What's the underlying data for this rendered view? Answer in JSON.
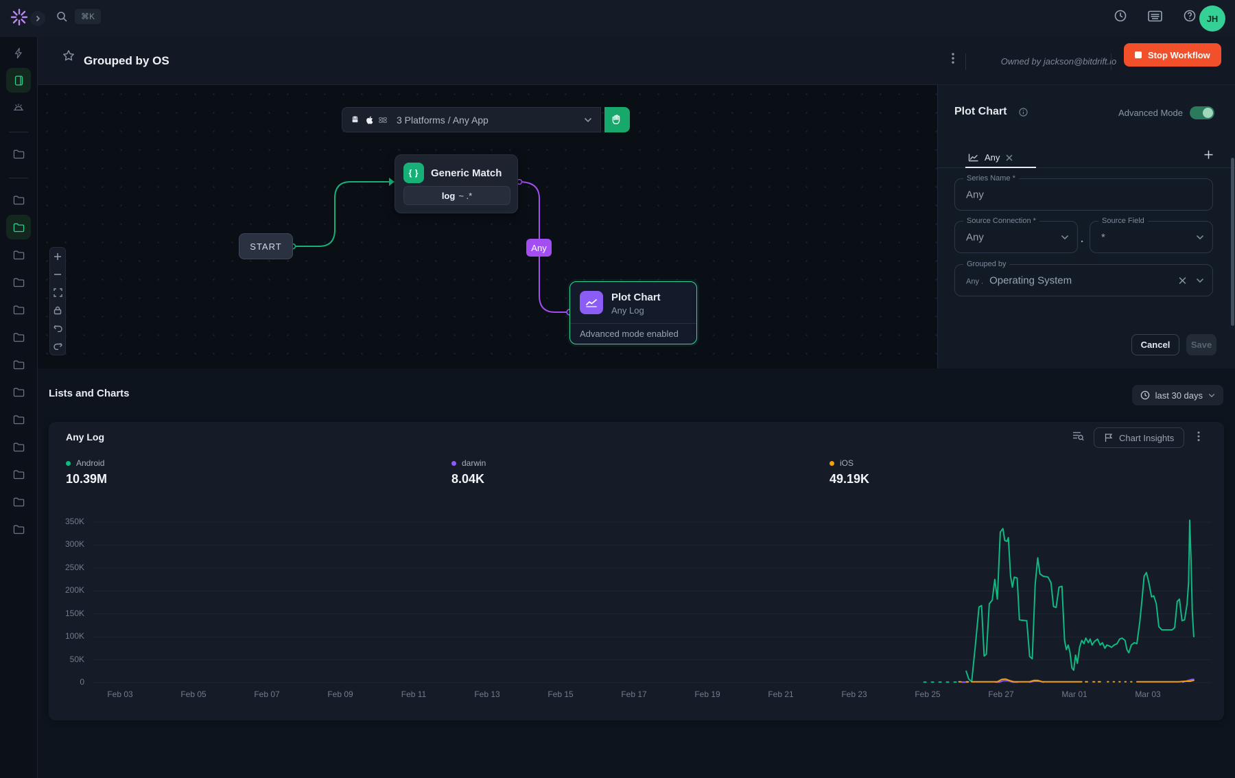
{
  "topbar": {
    "search_shortcut": "⌘K",
    "avatar_initials": "JH"
  },
  "sidebar": {
    "items": [
      {
        "icon": "zap"
      },
      {
        "icon": "device",
        "active": true
      },
      {
        "icon": "alarm"
      },
      {
        "divider": true
      },
      {
        "icon": "folder"
      },
      {
        "divider": true
      },
      {
        "icon": "folder"
      },
      {
        "icon": "folder",
        "active": true
      },
      {
        "icon": "folder"
      },
      {
        "icon": "folder"
      },
      {
        "icon": "folder"
      },
      {
        "icon": "folder"
      },
      {
        "icon": "folder"
      },
      {
        "icon": "folder"
      },
      {
        "icon": "folder"
      },
      {
        "icon": "folder"
      },
      {
        "icon": "folder"
      },
      {
        "icon": "folder"
      },
      {
        "icon": "folder"
      }
    ]
  },
  "header": {
    "title": "Grouped by OS",
    "owner": "Owned by jackson@bitdrift.io",
    "stop_button": "Stop Workflow"
  },
  "canvas": {
    "platform_selector": {
      "label": "3 Platforms / Any App"
    },
    "start_node": "START",
    "generic_match": {
      "title": "Generic Match",
      "rule_field": "log",
      "rule_rest": "~ .*"
    },
    "any_badge": "Any",
    "plot_chart_node": {
      "title": "Plot Chart",
      "subtitle": "Any Log",
      "footer": "Advanced mode enabled"
    }
  },
  "panel": {
    "title": "Plot Chart",
    "advanced_mode_label": "Advanced Mode",
    "tab_label": "Any",
    "series_name": {
      "label": "Series Name *",
      "value": "Any"
    },
    "source_connection": {
      "label": "Source Connection *",
      "value": "Any"
    },
    "field_separator": ".",
    "source_field": {
      "label": "Source Field",
      "value": "*"
    },
    "grouped_by": {
      "label": "Grouped by",
      "prefix": "Any .",
      "value": "Operating System"
    },
    "cancel_button": "Cancel",
    "save_button": "Save"
  },
  "section": {
    "title": "Lists and Charts",
    "time_range": "last 30 days"
  },
  "chart_card": {
    "title": "Any Log",
    "insights_button": "Chart Insights"
  },
  "chart_data": {
    "type": "line",
    "title": "Any Log",
    "time_range": "last 30 days",
    "ylim": [
      0,
      350000
    ],
    "yticks": [
      "350K",
      "300K",
      "250K",
      "200K",
      "150K",
      "100K",
      "50K",
      "0"
    ],
    "xticks": [
      "Feb 03",
      "Feb 05",
      "Feb 07",
      "Feb 09",
      "Feb 11",
      "Feb 13",
      "Feb 15",
      "Feb 17",
      "Feb 19",
      "Feb 21",
      "Feb 23",
      "Feb 25",
      "Feb 27",
      "Mar 01",
      "Mar 03"
    ],
    "x_unit_days_since": "Feb 03",
    "grid": true,
    "legend_position": "top",
    "series": [
      {
        "name": "Android",
        "total": "10.39M",
        "color": "#10b981",
        "unit": "K",
        "segments": [
          {
            "style": "dashed",
            "points": [
              [
                21.9,
                1
              ],
              [
                23.0,
                1
              ]
            ]
          },
          {
            "style": "solid",
            "points": [
              [
                23.05,
                25
              ],
              [
                23.12,
                8
              ],
              [
                23.2,
                2
              ],
              [
                23.3,
                80
              ],
              [
                23.4,
                165
              ],
              [
                23.47,
                168
              ],
              [
                23.54,
                58
              ],
              [
                23.6,
                62
              ],
              [
                23.68,
                172
              ],
              [
                23.76,
                180
              ],
              [
                23.83,
                225
              ],
              [
                23.9,
                182
              ],
              [
                23.98,
                328
              ],
              [
                24.05,
                336
              ],
              [
                24.1,
                310
              ],
              [
                24.16,
                308
              ],
              [
                24.2,
                316
              ],
              [
                24.26,
                232
              ],
              [
                24.31,
                208
              ],
              [
                24.36,
                230
              ],
              [
                24.44,
                228
              ],
              [
                24.5,
                137
              ],
              [
                24.58,
                136
              ],
              [
                24.7,
                135
              ],
              [
                24.78,
                57
              ],
              [
                24.85,
                52
              ],
              [
                24.93,
                215
              ],
              [
                25.0,
                272
              ],
              [
                25.06,
                237
              ],
              [
                25.15,
                232
              ],
              [
                25.28,
                230
              ],
              [
                25.36,
                218
              ],
              [
                25.43,
                166
              ],
              [
                25.5,
                164
              ],
              [
                25.58,
                208
              ],
              [
                25.66,
                210
              ],
              [
                25.73,
                92
              ],
              [
                25.78,
                72
              ],
              [
                25.83,
                82
              ],
              [
                25.88,
                65
              ],
              [
                25.93,
                32
              ],
              [
                25.98,
                27
              ],
              [
                26.03,
                60
              ],
              [
                26.08,
                42
              ],
              [
                26.14,
                77
              ],
              [
                26.2,
                92
              ],
              [
                26.26,
                85
              ],
              [
                26.31,
                97
              ],
              [
                26.38,
                87
              ],
              [
                26.43,
                95
              ],
              [
                26.48,
                82
              ],
              [
                26.55,
                90
              ],
              [
                26.63,
                95
              ],
              [
                26.7,
                82
              ],
              [
                26.76,
                87
              ],
              [
                26.83,
                75
              ],
              [
                26.88,
                82
              ],
              [
                26.95,
                80
              ],
              [
                27.01,
                77
              ],
              [
                27.08,
                82
              ],
              [
                27.16,
                85
              ],
              [
                27.23,
                95
              ],
              [
                27.3,
                97
              ],
              [
                27.38,
                92
              ],
              [
                27.43,
                72
              ],
              [
                27.48,
                65
              ],
              [
                27.55,
                82
              ],
              [
                27.63,
                87
              ],
              [
                27.7,
                85
              ],
              [
                27.78,
                132
              ],
              [
                27.83,
                172
              ],
              [
                27.9,
                232
              ],
              [
                27.96,
                240
              ],
              [
                28.03,
                217
              ],
              [
                28.1,
                187
              ],
              [
                28.16,
                189
              ],
              [
                28.23,
                172
              ],
              [
                28.3,
                122
              ],
              [
                28.38,
                115
              ],
              [
                28.52,
                115
              ],
              [
                28.66,
                115
              ],
              [
                28.73,
                120
              ],
              [
                28.8,
                177
              ],
              [
                28.86,
                182
              ],
              [
                28.93,
                135
              ],
              [
                29.0,
                137
              ],
              [
                29.07,
                172
              ],
              [
                29.11,
                220
              ],
              [
                29.14,
                354
              ],
              [
                29.18,
                260
              ],
              [
                29.21,
                157
              ],
              [
                29.25,
                100
              ]
            ]
          }
        ]
      },
      {
        "name": "darwin",
        "total": "8.04K",
        "color": "#8b5cf6",
        "unit": "K",
        "segments": [
          {
            "style": "solid",
            "points": [
              [
                22.95,
                1
              ],
              [
                23.1,
                1
              ]
            ]
          },
          {
            "style": "solid",
            "points": [
              [
                23.85,
                1
              ],
              [
                23.95,
                1
              ],
              [
                24.05,
                4
              ],
              [
                24.2,
                4
              ],
              [
                24.32,
                1
              ],
              [
                24.45,
                1
              ]
            ]
          },
          {
            "style": "solid",
            "points": [
              [
                24.78,
                1
              ],
              [
                24.9,
                3
              ],
              [
                25.05,
                3
              ],
              [
                25.15,
                1
              ]
            ]
          },
          {
            "style": "solid",
            "points": [
              [
                28.95,
                1
              ],
              [
                29.1,
                5
              ],
              [
                29.2,
                7
              ],
              [
                29.25,
                7
              ]
            ]
          }
        ]
      },
      {
        "name": "iOS",
        "total": "49.19K",
        "color": "#f59e0b",
        "unit": "K",
        "segments": [
          {
            "style": "dashed",
            "points": [
              [
                22.85,
                2
              ],
              [
                23.15,
                2
              ]
            ]
          },
          {
            "style": "solid",
            "points": [
              [
                23.2,
                2
              ],
              [
                23.9,
                2
              ],
              [
                24.02,
                7
              ],
              [
                24.12,
                8
              ],
              [
                24.25,
                4
              ],
              [
                24.35,
                2
              ],
              [
                24.78,
                2
              ],
              [
                24.9,
                5
              ],
              [
                25.0,
                5
              ],
              [
                25.12,
                2
              ],
              [
                25.3,
                2
              ],
              [
                26.2,
                2
              ]
            ]
          },
          {
            "style": "dashed",
            "points": [
              [
                26.3,
                2
              ],
              [
                26.55,
                2
              ]
            ]
          },
          {
            "style": "dashed",
            "points": [
              [
                26.65,
                2
              ],
              [
                26.8,
                2
              ]
            ]
          },
          {
            "style": "dotted",
            "points": [
              [
                26.9,
                2
              ],
              [
                27.65,
                2
              ]
            ]
          },
          {
            "style": "solid",
            "points": [
              [
                27.7,
                2
              ],
              [
                28.85,
                2
              ],
              [
                29.0,
                3
              ],
              [
                29.15,
                3
              ],
              [
                29.25,
                5
              ]
            ]
          }
        ]
      }
    ]
  }
}
